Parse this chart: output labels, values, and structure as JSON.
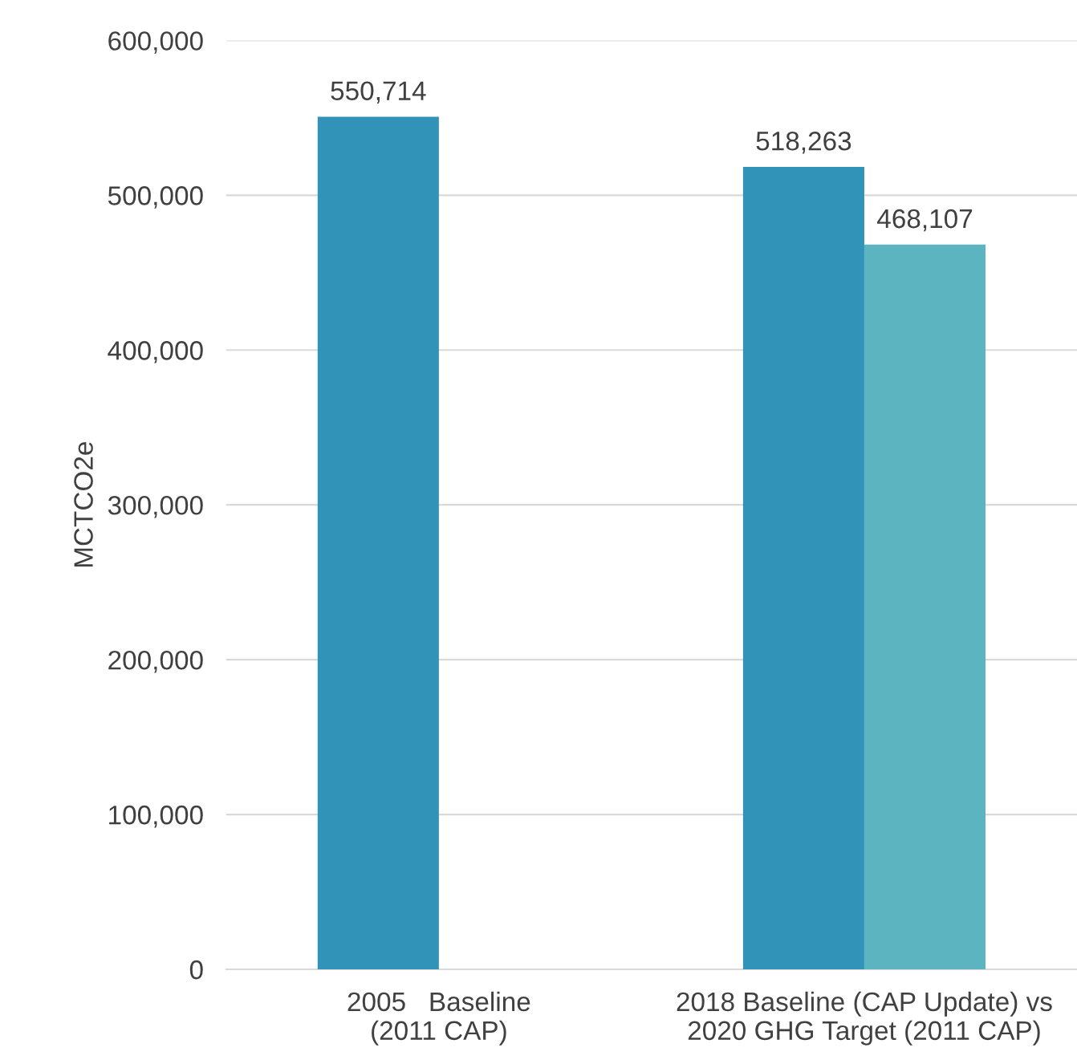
{
  "chart_data": {
    "type": "bar",
    "ylabel": "MCTCO2e",
    "categories": [
      "2005   Baseline\n(2011 CAP)",
      "2018 Baseline (CAP Update) vs\n2020 GHG Target (2011 CAP)"
    ],
    "series": [
      {
        "color": "#3193b8",
        "values": [
          550714,
          518263
        ]
      },
      {
        "color": "#5bb4bf",
        "values": [
          null,
          468107
        ]
      }
    ],
    "ylim": [
      0,
      600000
    ],
    "yticks": [
      {
        "value": 0,
        "label": "0"
      },
      {
        "value": 100000,
        "label": "100,000"
      },
      {
        "value": 200000,
        "label": "200,000"
      },
      {
        "value": 300000,
        "label": "300,000"
      },
      {
        "value": 400000,
        "label": "400,000"
      },
      {
        "value": 500000,
        "label": "500,000"
      },
      {
        "value": 600000,
        "label": "600,000"
      }
    ],
    "grid": "y",
    "value_labels": [
      [
        "550,714",
        "518,263"
      ],
      [
        null,
        "468,107"
      ]
    ]
  }
}
